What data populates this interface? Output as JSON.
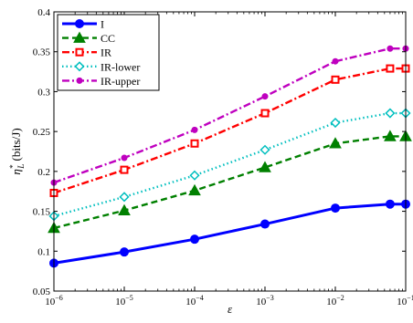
{
  "chart_data": {
    "type": "line",
    "title": "",
    "xlabel": "ε",
    "ylabel_main": "η",
    "ylabel_sub": "L",
    "ylabel_sup": "*",
    "ylabel_unit": "(bits/J)",
    "x_scale": "log",
    "x": [
      1e-06,
      1e-05,
      0.0001,
      0.001,
      0.01,
      0.06,
      0.1
    ],
    "xlim": [
      1e-06,
      0.1
    ],
    "ylim": [
      0.05,
      0.4
    ],
    "x_ticks": [
      {
        "value": 1e-06,
        "base": "10",
        "exp": "−6"
      },
      {
        "value": 1e-05,
        "base": "10",
        "exp": "−5"
      },
      {
        "value": 0.0001,
        "base": "10",
        "exp": "−4"
      },
      {
        "value": 0.001,
        "base": "10",
        "exp": "−3"
      },
      {
        "value": 0.01,
        "base": "10",
        "exp": "−2"
      },
      {
        "value": 0.1,
        "base": "10",
        "exp": "−1"
      }
    ],
    "y_ticks": [
      {
        "value": 0.05,
        "label": "0.05"
      },
      {
        "value": 0.1,
        "label": "0.1"
      },
      {
        "value": 0.15,
        "label": "0.15"
      },
      {
        "value": 0.2,
        "label": "0.2"
      },
      {
        "value": 0.25,
        "label": "0.25"
      },
      {
        "value": 0.3,
        "label": "0.3"
      },
      {
        "value": 0.35,
        "label": "0.35"
      },
      {
        "value": 0.4,
        "label": "0.4"
      }
    ],
    "grid": false,
    "legend_position": "top-left",
    "series": [
      {
        "name": "I",
        "color": "#0000ff",
        "dash": "solid",
        "marker": "circle",
        "values": [
          0.085,
          0.099,
          0.115,
          0.134,
          0.154,
          0.159,
          0.159
        ]
      },
      {
        "name": "CC",
        "color": "#008000",
        "dash": "dashed",
        "marker": "triangle",
        "values": [
          0.129,
          0.151,
          0.176,
          0.205,
          0.235,
          0.244,
          0.244
        ]
      },
      {
        "name": "IR",
        "color": "#ff0000",
        "dash": "dashdot",
        "marker": "square",
        "values": [
          0.173,
          0.202,
          0.235,
          0.273,
          0.315,
          0.329,
          0.329
        ]
      },
      {
        "name": "IR-lower",
        "color": "#00bfbf",
        "dash": "dotted",
        "marker": "diamond",
        "values": [
          0.144,
          0.168,
          0.195,
          0.227,
          0.261,
          0.273,
          0.273
        ]
      },
      {
        "name": "IR-upper",
        "color": "#bf00bf",
        "dash": "dashdot",
        "marker": "dot",
        "values": [
          0.186,
          0.217,
          0.252,
          0.294,
          0.338,
          0.354,
          0.354
        ]
      }
    ]
  }
}
